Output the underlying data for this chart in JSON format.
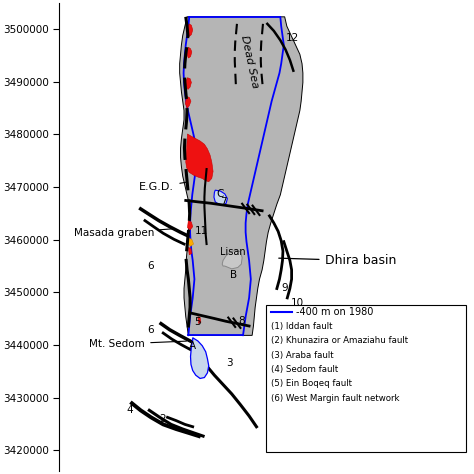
{
  "background": "#ffffff",
  "gray_fill": "#b0b0b0",
  "blue_contour": "#0000cc",
  "red_color": "#ee1111",
  "orange_color": "#ffa500",
  "legend_items": [
    "(1) Iddan fault",
    "(2) Khunazira or Amaziahu fault",
    "(3) Araba fault",
    "(4) Sedom fault",
    "(5) Ein Boqeq fault",
    "(6) West Margin fault network"
  ],
  "legend_blue_line": "-400 m on 1980",
  "yticks": [
    3420000,
    3430000,
    3440000,
    3450000,
    3460000,
    3470000,
    3480000,
    3490000,
    3500000
  ],
  "ymin": 3416000,
  "ymax": 3505000,
  "xmin": 0.0,
  "xmax": 1.0
}
